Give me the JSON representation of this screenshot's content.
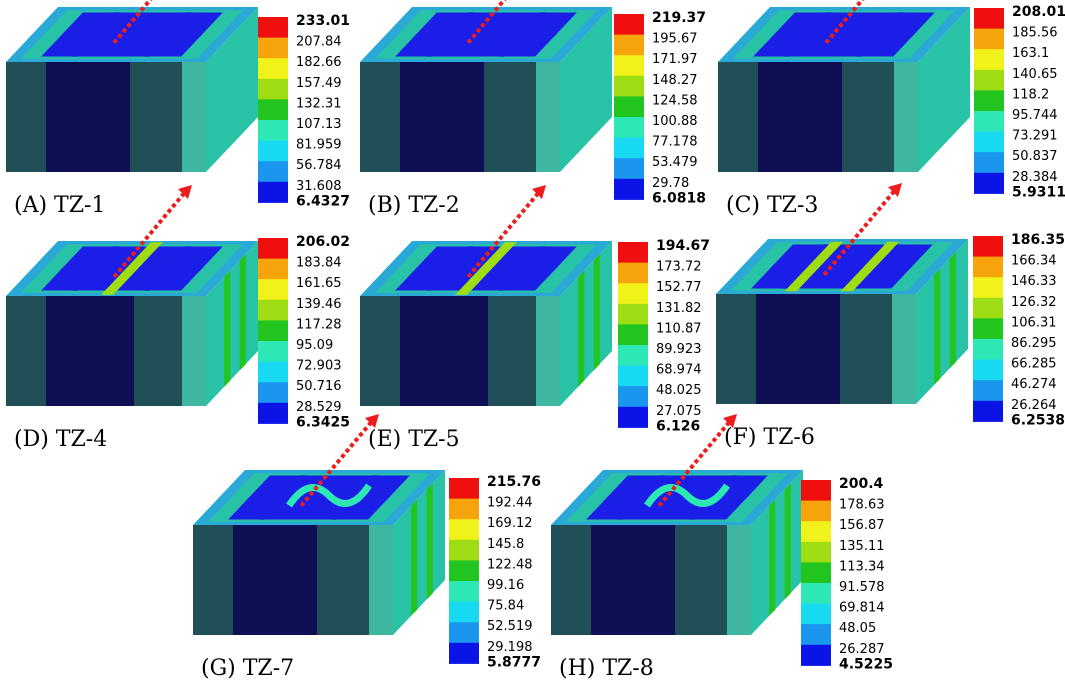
{
  "colors": {
    "scale": [
      "#0a14e6",
      "#1a96ee",
      "#17d9f2",
      "#2de8b5",
      "#22c41f",
      "#9edc13",
      "#f2f21b",
      "#f7a30c",
      "#f00f0f"
    ],
    "front_dark": "#1d404a",
    "front_mid": "#214f57",
    "core_front": "#0f0f55",
    "top_blue": "#1a1ee6",
    "frame_cyan": "#2aa9d6",
    "frame_teal": "#28c2a6",
    "side_teal": "#3fb7a0",
    "arrow": "#ee1c1c"
  },
  "panels": [
    {
      "caption": "(A) TZ-1",
      "max": "233.01",
      "ticks": [
        "207.84",
        "182.66",
        "157.49",
        "132.31",
        "107.13",
        "81.959",
        "56.784",
        "31.608"
      ],
      "min": "6.4327"
    },
    {
      "caption": "(B) TZ-2",
      "max": "219.37",
      "ticks": [
        "195.67",
        "171.97",
        "148.27",
        "124.58",
        "100.88",
        "77.178",
        "53.479",
        "29.78"
      ],
      "min": "6.0818"
    },
    {
      "caption": "(C) TZ-3",
      "max": "208.01",
      "ticks": [
        "185.56",
        "163.1",
        "140.65",
        "118.2",
        "95.744",
        "73.291",
        "50.837",
        "28.384"
      ],
      "min": "5.9311"
    },
    {
      "caption": "(D) TZ-4",
      "max": "206.02",
      "ticks": [
        "183.84",
        "161.65",
        "139.46",
        "117.28",
        "95.09",
        "72.903",
        "50.716",
        "28.529"
      ],
      "min": "6.3425"
    },
    {
      "caption": "(E) TZ-5",
      "max": "194.67",
      "ticks": [
        "173.72",
        "152.77",
        "131.82",
        "110.87",
        "89.923",
        "68.974",
        "48.025",
        "27.075"
      ],
      "min": "6.126"
    },
    {
      "caption": "(F) TZ-6",
      "max": "186.35",
      "ticks": [
        "166.34",
        "146.33",
        "126.32",
        "106.31",
        "86.295",
        "66.285",
        "46.274",
        "26.264"
      ],
      "min": "6.2538"
    },
    {
      "caption": "(G) TZ-7",
      "max": "215.76",
      "ticks": [
        "192.44",
        "169.12",
        "145.8",
        "122.48",
        "99.16",
        "75.84",
        "52.519",
        "29.198"
      ],
      "min": "5.8777"
    },
    {
      "caption": "(H) TZ-8",
      "max": "200.4",
      "ticks": [
        "178.63",
        "156.87",
        "135.11",
        "113.34",
        "91.578",
        "69.814",
        "48.05",
        "26.287"
      ],
      "min": "4.5225"
    }
  ]
}
